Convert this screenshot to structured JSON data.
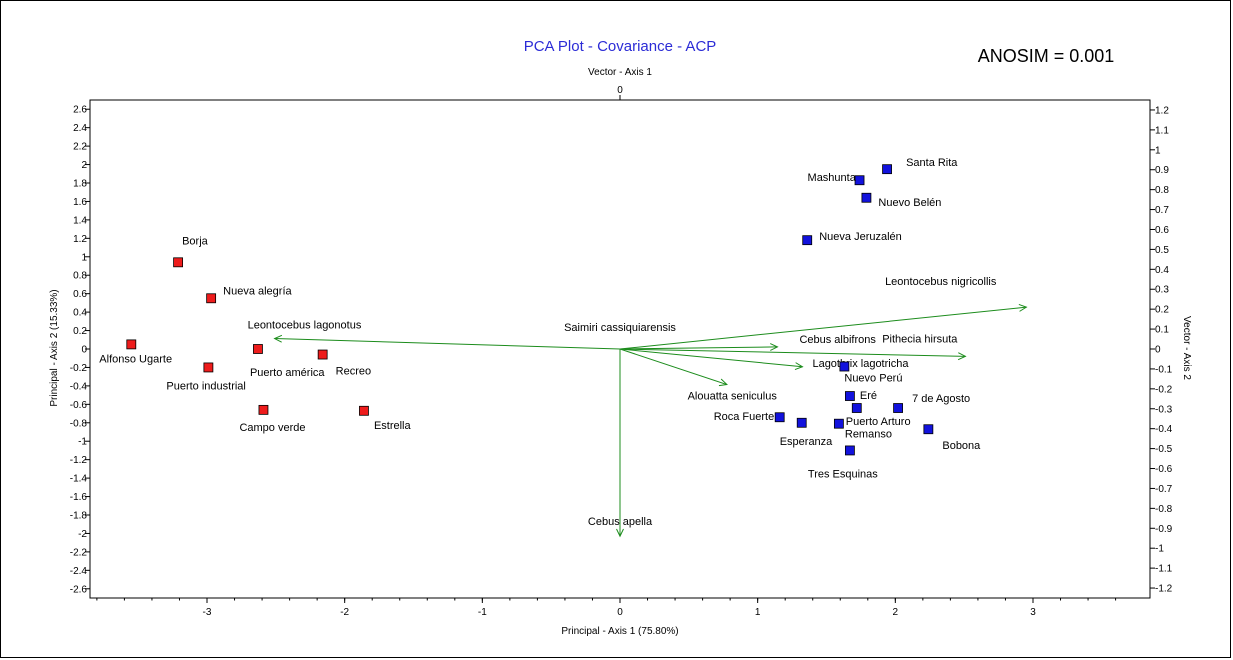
{
  "chart_data": {
    "type": "scatter",
    "title": "PCA Plot - Covariance - ACP",
    "annotation": "ANOSIM = 0.001",
    "xlabel": "Principal - Axis 1 (75.80%)",
    "ylabel": "Principal - Axis 2 (15.33%)",
    "top_axis_label": "Vector - Axis 1",
    "top_axis_tick": "0",
    "right_axis_label": "Vector - Axis 2",
    "xlim": [
      -3.85,
      3.85
    ],
    "ylim": [
      -2.7,
      2.7
    ],
    "y2lim": [
      -1.25,
      1.25
    ],
    "x_ticks": [
      {
        "value": -3,
        "label": "-3"
      },
      {
        "value": -2,
        "label": "-2"
      },
      {
        "value": -1,
        "label": "-1"
      },
      {
        "value": 0,
        "label": "0"
      },
      {
        "value": 1,
        "label": "1"
      },
      {
        "value": 2,
        "label": "2"
      },
      {
        "value": 3,
        "label": "3"
      }
    ],
    "y_ticks": [
      {
        "value": 2.6,
        "label": "2.6"
      },
      {
        "value": 2.4,
        "label": "2.4"
      },
      {
        "value": 2.2,
        "label": "2.2"
      },
      {
        "value": 2.0,
        "label": "2"
      },
      {
        "value": 1.8,
        "label": "1.8"
      },
      {
        "value": 1.6,
        "label": "1.6"
      },
      {
        "value": 1.4,
        "label": "1.4"
      },
      {
        "value": 1.2,
        "label": "1.2"
      },
      {
        "value": 1.0,
        "label": "1"
      },
      {
        "value": 0.8,
        "label": "0.8"
      },
      {
        "value": 0.6,
        "label": "0.6"
      },
      {
        "value": 0.4,
        "label": "0.4"
      },
      {
        "value": 0.2,
        "label": "0.2"
      },
      {
        "value": 0,
        "label": "0"
      },
      {
        "value": -0.2,
        "label": "-0.2"
      },
      {
        "value": -0.4,
        "label": "-0.4"
      },
      {
        "value": -0.6,
        "label": "-0.6"
      },
      {
        "value": -0.8,
        "label": "-0.8"
      },
      {
        "value": -1.0,
        "label": "-1"
      },
      {
        "value": -1.2,
        "label": "-1.2"
      },
      {
        "value": -1.4,
        "label": "-1.4"
      },
      {
        "value": -1.6,
        "label": "-1.6"
      },
      {
        "value": -1.8,
        "label": "-1.8"
      },
      {
        "value": -2.0,
        "label": "-2"
      },
      {
        "value": -2.2,
        "label": "-2.2"
      },
      {
        "value": -2.4,
        "label": "-2.4"
      },
      {
        "value": -2.6,
        "label": "-2.6"
      }
    ],
    "y2_ticks": [
      {
        "value": 1.2,
        "label": "1.2"
      },
      {
        "value": 1.1,
        "label": "1.1"
      },
      {
        "value": 1.0,
        "label": "1"
      },
      {
        "value": 0.9,
        "label": "0.9"
      },
      {
        "value": 0.8,
        "label": "0.8"
      },
      {
        "value": 0.7,
        "label": "0.7"
      },
      {
        "value": 0.6,
        "label": "0.6"
      },
      {
        "value": 0.5,
        "label": "0.5"
      },
      {
        "value": 0.4,
        "label": "0.4"
      },
      {
        "value": 0.3,
        "label": "0.3"
      },
      {
        "value": 0.2,
        "label": "0.2"
      },
      {
        "value": 0.1,
        "label": "0.1"
      },
      {
        "value": 0,
        "label": "0"
      },
      {
        "value": -0.1,
        "label": "-0.1"
      },
      {
        "value": -0.2,
        "label": "-0.2"
      },
      {
        "value": -0.3,
        "label": "-0.3"
      },
      {
        "value": -0.4,
        "label": "-0.4"
      },
      {
        "value": -0.5,
        "label": "-0.5"
      },
      {
        "value": -0.6,
        "label": "-0.6"
      },
      {
        "value": -0.7,
        "label": "-0.7"
      },
      {
        "value": -0.8,
        "label": "-0.8"
      },
      {
        "value": -0.9,
        "label": "-0.9"
      },
      {
        "value": -1.0,
        "label": "-1"
      },
      {
        "value": -1.1,
        "label": "-1.1"
      },
      {
        "value": -1.2,
        "label": "-1.2"
      }
    ],
    "colors": {
      "title": "#2b2bd6",
      "group_red": "#ee1c1c",
      "group_blue": "#1212dd",
      "vector": "#1c8c1c",
      "axis": "#000000"
    },
    "series": [
      {
        "color": "#ee1c1c",
        "points": [
          {
            "label": "Borja",
            "x": -3.21,
            "y": 0.94
          },
          {
            "label": "Nueva alegría",
            "x": -2.97,
            "y": 0.55
          },
          {
            "label": "Alfonso Ugarte",
            "x": -3.55,
            "y": 0.05
          },
          {
            "label": "Puerto américa",
            "x": -2.63,
            "y": 0.0
          },
          {
            "label": "Recreo",
            "x": -2.16,
            "y": -0.06
          },
          {
            "label": "Puerto industrial",
            "x": -2.99,
            "y": -0.2
          },
          {
            "label": "Campo verde",
            "x": -2.59,
            "y": -0.66
          },
          {
            "label": "Estrella",
            "x": -1.86,
            "y": -0.67
          }
        ]
      },
      {
        "color": "#1212dd",
        "points": [
          {
            "label": "Santa Rita",
            "x": 1.94,
            "y": 1.95
          },
          {
            "label": "Mashunta",
            "x": 1.74,
            "y": 1.83
          },
          {
            "label": "Nuevo Belén",
            "x": 1.79,
            "y": 1.64
          },
          {
            "label": "Nueva Jeruzalén",
            "x": 1.36,
            "y": 1.18
          },
          {
            "label": "Nuevo Perú",
            "x": 1.63,
            "y": -0.19
          },
          {
            "label": "Eré",
            "x": 1.67,
            "y": -0.51
          },
          {
            "label": "7 de Agosto",
            "x": 2.02,
            "y": -0.64
          },
          {
            "label": "Puerto Arturo",
            "x": 1.72,
            "y": -0.64
          },
          {
            "label": "Roca Fuerte",
            "x": 1.16,
            "y": -0.74
          },
          {
            "label": "Esperanza",
            "x": 1.32,
            "y": -0.8
          },
          {
            "label": "Remanso",
            "x": 1.59,
            "y": -0.81
          },
          {
            "label": "Bobona",
            "x": 2.24,
            "y": -0.87
          },
          {
            "label": "Tres Esquinas",
            "x": 1.67,
            "y": -1.1
          }
        ]
      }
    ],
    "vectors": [
      {
        "label": "Leontocebus nigricollis",
        "x": 0.2,
        "y": 0.2
      },
      {
        "label": "Pithecia hirsuta",
        "x": 0.17,
        "y": -0.035
      },
      {
        "label": "Cebus albifrons",
        "x": 0.0775,
        "y": 0.01
      },
      {
        "label": "Lagothrix lagotricha",
        "x": 0.0898,
        "y": -0.085
      },
      {
        "label": "Alouatta seniculus",
        "x": 0.0526,
        "y": -0.17
      },
      {
        "label": "Saimiri cassiquiarensis",
        "x": 0.0,
        "y": 0.0
      },
      {
        "label": "Cebus apella",
        "x": 0.0,
        "y": -0.895
      },
      {
        "label": "Leontocebus lagonotus",
        "x": -0.17,
        "y": 0.05
      }
    ]
  }
}
